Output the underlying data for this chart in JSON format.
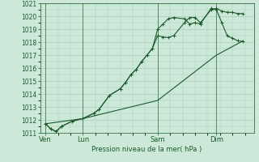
{
  "bg_color": "#cce8d8",
  "grid_color": "#a8ccbc",
  "line_color": "#1a5c28",
  "marker_color": "#1a5c28",
  "xlabel": "Pression niveau de la mer( hPa )",
  "ylim": [
    1011,
    1021
  ],
  "xlim": [
    0,
    20
  ],
  "yticks": [
    1011,
    1012,
    1013,
    1014,
    1015,
    1016,
    1017,
    1018,
    1019,
    1020,
    1021
  ],
  "xtick_labels": [
    "Ven",
    "Lun",
    "Sam",
    "Dim"
  ],
  "xtick_positions": [
    0.5,
    4,
    11,
    16.5
  ],
  "vlines": [
    0.5,
    4,
    11,
    16.5
  ],
  "series1_x": [
    0.5,
    1.0,
    1.5,
    2.0,
    3.0,
    4.0,
    5.0,
    5.5,
    6.5,
    7.5,
    8.0,
    8.5,
    9.0,
    9.5,
    10.0,
    10.5,
    11.0,
    11.5,
    12.0,
    12.5,
    13.5,
    14.0,
    14.5,
    15.0,
    16.0,
    16.5,
    17.0,
    17.5,
    18.0,
    18.5,
    19.0
  ],
  "series1_y": [
    1011.7,
    1011.3,
    1011.1,
    1011.5,
    1011.9,
    1012.1,
    1012.5,
    1012.8,
    1013.9,
    1014.4,
    1014.9,
    1015.5,
    1015.9,
    1016.5,
    1017.0,
    1017.5,
    1018.5,
    1018.4,
    1018.35,
    1018.5,
    1019.5,
    1019.9,
    1019.9,
    1019.5,
    1020.5,
    1020.6,
    1020.4,
    1020.3,
    1020.3,
    1020.2,
    1020.2
  ],
  "series2_x": [
    0.5,
    1.0,
    1.5,
    2.0,
    3.0,
    4.0,
    5.0,
    5.5,
    6.5,
    7.5,
    8.0,
    8.5,
    9.0,
    9.5,
    10.0,
    10.5,
    11.0,
    11.5,
    12.0,
    12.5,
    13.5,
    14.0,
    14.5,
    15.0,
    16.0,
    16.5,
    17.0,
    17.5,
    18.0,
    18.5,
    19.0
  ],
  "series2_y": [
    1011.7,
    1011.3,
    1011.1,
    1011.5,
    1011.9,
    1012.1,
    1012.5,
    1012.8,
    1013.9,
    1014.4,
    1014.9,
    1015.5,
    1015.9,
    1016.5,
    1017.0,
    1017.5,
    1019.0,
    1019.4,
    1019.8,
    1019.9,
    1019.8,
    1019.4,
    1019.5,
    1019.4,
    1020.6,
    1020.5,
    1019.5,
    1018.5,
    1018.3,
    1018.1,
    1018.05
  ],
  "series3_x": [
    0.5,
    4.0,
    11.0,
    16.5,
    19.0
  ],
  "series3_y": [
    1011.7,
    1012.1,
    1013.5,
    1017.0,
    1018.1
  ]
}
